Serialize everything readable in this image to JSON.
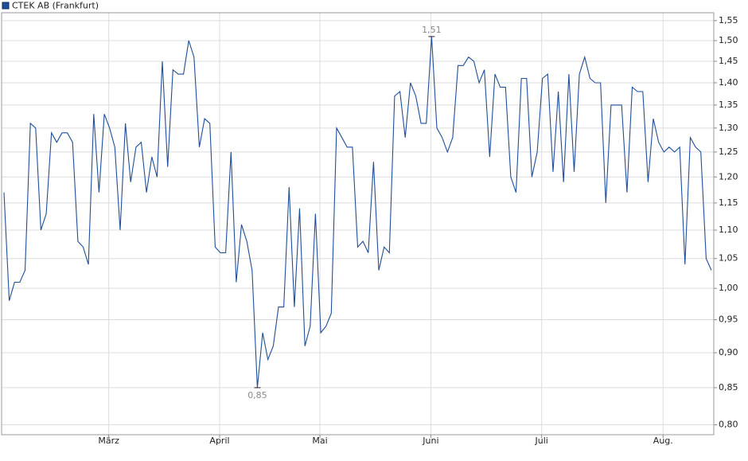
{
  "chart_data": {
    "type": "line",
    "title": "CTEK AB (Frankfurt)",
    "log": true,
    "grid": true,
    "legend": "top-left",
    "categories": [
      null,
      null,
      null,
      null,
      null,
      null,
      null,
      null,
      null,
      null,
      null,
      null,
      null,
      null,
      null,
      null,
      null,
      null,
      null,
      null,
      "März",
      null,
      null,
      null,
      null,
      null,
      null,
      null,
      null,
      null,
      null,
      null,
      null,
      null,
      null,
      null,
      null,
      null,
      null,
      null,
      null,
      "April",
      null,
      null,
      null,
      null,
      null,
      null,
      null,
      null,
      null,
      null,
      null,
      null,
      null,
      null,
      null,
      null,
      null,
      null,
      "Mai",
      null,
      null,
      null,
      null,
      null,
      null,
      null,
      null,
      null,
      null,
      null,
      null,
      null,
      null,
      null,
      null,
      null,
      null,
      null,
      null,
      "Juni",
      null,
      null,
      null,
      null,
      null,
      null,
      null,
      null,
      null,
      null,
      null,
      null,
      null,
      null,
      null,
      null,
      null,
      null,
      null,
      null,
      "Juli",
      null,
      null,
      null,
      null,
      null,
      null,
      null,
      null,
      null,
      null,
      null,
      null,
      null,
      null,
      null,
      null,
      null,
      null,
      null,
      null,
      null,
      null,
      "Aug.",
      null,
      null,
      null,
      null,
      null,
      null,
      null,
      null,
      null
    ],
    "series": [
      {
        "name": "CTEK AB (Frankfurt)",
        "color": "#1f4e9a",
        "values": [
          1.17,
          0.98,
          1.01,
          1.01,
          1.03,
          1.31,
          1.3,
          1.1,
          1.13,
          1.29,
          1.27,
          1.29,
          1.29,
          1.27,
          1.08,
          1.07,
          1.04,
          1.33,
          1.17,
          1.33,
          1.3,
          1.26,
          1.1,
          1.31,
          1.19,
          1.26,
          1.27,
          1.17,
          1.24,
          1.2,
          1.45,
          1.22,
          1.43,
          1.42,
          1.42,
          1.5,
          1.46,
          1.26,
          1.32,
          1.31,
          1.07,
          1.06,
          1.06,
          1.25,
          1.01,
          1.11,
          1.08,
          1.03,
          0.85,
          0.93,
          0.89,
          0.91,
          0.97,
          0.97,
          1.18,
          0.97,
          1.14,
          0.91,
          0.94,
          1.13,
          0.93,
          0.94,
          0.96,
          1.3,
          1.28,
          1.26,
          1.26,
          1.07,
          1.08,
          1.06,
          1.23,
          1.03,
          1.07,
          1.06,
          1.37,
          1.38,
          1.28,
          1.4,
          1.37,
          1.31,
          1.31,
          1.51,
          1.3,
          1.28,
          1.25,
          1.28,
          1.44,
          1.44,
          1.46,
          1.45,
          1.4,
          1.43,
          1.24,
          1.42,
          1.39,
          1.39,
          1.2,
          1.17,
          1.41,
          1.41,
          1.2,
          1.25,
          1.41,
          1.42,
          1.21,
          1.38,
          1.19,
          1.42,
          1.21,
          1.42,
          1.46,
          1.41,
          1.4,
          1.4,
          1.15,
          1.35,
          1.35,
          1.35,
          1.17,
          1.39,
          1.38,
          1.38,
          1.19,
          1.32,
          1.27,
          1.25,
          1.26,
          1.25,
          1.26,
          1.04,
          1.28,
          1.26,
          1.25,
          1.05,
          1.03
        ],
        "value_labels": [
          null,
          null,
          null,
          null,
          null,
          null,
          null,
          null,
          null,
          null,
          null,
          null,
          null,
          null,
          null,
          null,
          null,
          null,
          null,
          null,
          null,
          null,
          null,
          null,
          null,
          null,
          null,
          null,
          null,
          null,
          null,
          null,
          null,
          null,
          null,
          null,
          null,
          null,
          null,
          null,
          null,
          null,
          null,
          null,
          null,
          null,
          null,
          null,
          "0,85",
          null,
          null,
          null,
          null,
          null,
          null,
          null,
          null,
          null,
          null,
          null,
          null,
          null,
          null,
          null,
          null,
          null,
          null,
          null,
          null,
          null,
          null,
          null,
          null,
          null,
          null,
          null,
          null,
          null,
          null,
          null,
          null,
          "1,51",
          null,
          null,
          null,
          null,
          null,
          null,
          null,
          null,
          null,
          null,
          null,
          null,
          null,
          null,
          null,
          null,
          null,
          null,
          null,
          null,
          null,
          null,
          null,
          null,
          null,
          null,
          null,
          null,
          null,
          null,
          null,
          null,
          null,
          null,
          null,
          null,
          null,
          null,
          null,
          null,
          null,
          null,
          null,
          null,
          null,
          null,
          null,
          null,
          null,
          null,
          null,
          null,
          null
        ]
      }
    ],
    "ylim": [
      0.787,
      1.57
    ],
    "yticks": [
      {
        "value": 0.8,
        "label": "0,80"
      },
      {
        "value": 0.85,
        "label": "0,85"
      },
      {
        "value": 0.9,
        "label": "0,90"
      },
      {
        "value": 0.95,
        "label": "0,95"
      },
      {
        "value": 1.0,
        "label": "1,00"
      },
      {
        "value": 1.05,
        "label": "1,05"
      },
      {
        "value": 1.1,
        "label": "1,10"
      },
      {
        "value": 1.15,
        "label": "1,15"
      },
      {
        "value": 1.2,
        "label": "1,20"
      },
      {
        "value": 1.25,
        "label": "1,25"
      },
      {
        "value": 1.3,
        "label": "1,30"
      },
      {
        "value": 1.35,
        "label": "1,35"
      },
      {
        "value": 1.4,
        "label": "1,40"
      },
      {
        "value": 1.45,
        "label": "1,45"
      },
      {
        "value": 1.5,
        "label": "1,50"
      },
      {
        "value": 1.55,
        "label": "1,55"
      }
    ]
  }
}
